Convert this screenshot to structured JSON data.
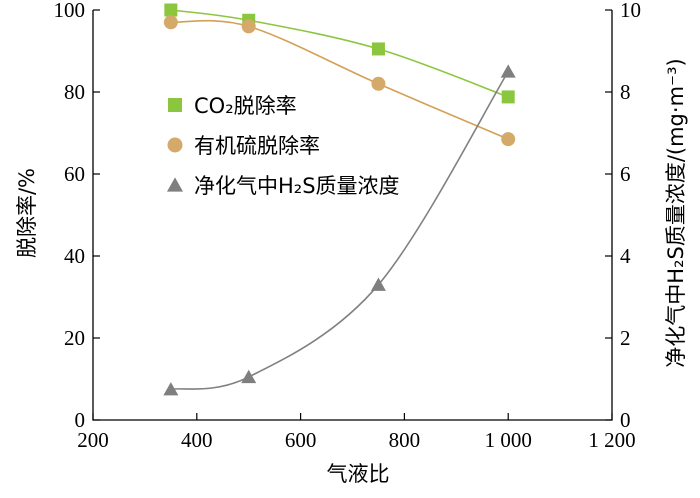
{
  "chart_data": {
    "type": "line",
    "xlabel": "气液比",
    "ylabel": "脱除率/%",
    "y2label": "净化气中H₂S质量浓度/(mg·m⁻³)",
    "xlim": [
      200,
      1200
    ],
    "ylim": [
      0,
      100
    ],
    "y2lim": [
      0,
      10
    ],
    "x_ticks": [
      200,
      400,
      600,
      800,
      1000,
      1200
    ],
    "x_tick_labels": [
      "200",
      "400",
      "600",
      "800",
      "1 000",
      "1 200"
    ],
    "y_ticks": [
      0,
      20,
      40,
      60,
      80,
      100
    ],
    "y2_ticks": [
      0,
      2,
      4,
      6,
      8,
      10
    ],
    "grid": false,
    "legend_position": "center-left",
    "series": [
      {
        "name": "CO₂脱除率",
        "axis": "left",
        "marker": "square",
        "color": "#8cc63f",
        "marker_color": "#8cc63f",
        "x": [
          350,
          500,
          750,
          1000
        ],
        "y": [
          100,
          97.5,
          90.5,
          78.8
        ]
      },
      {
        "name": "有机硫脱除率",
        "axis": "left",
        "marker": "circle",
        "color": "#d4a055",
        "marker_color": "#d4a96a",
        "x": [
          350,
          500,
          750,
          1000
        ],
        "y": [
          97,
          96,
          82,
          68.5
        ]
      },
      {
        "name": "净化气中H₂S质量浓度",
        "axis": "right",
        "marker": "triangle",
        "color": "#808080",
        "marker_color": "#7f7f7f",
        "x": [
          350,
          500,
          750,
          1000
        ],
        "y": [
          0.75,
          1.05,
          3.3,
          8.5
        ]
      }
    ]
  }
}
